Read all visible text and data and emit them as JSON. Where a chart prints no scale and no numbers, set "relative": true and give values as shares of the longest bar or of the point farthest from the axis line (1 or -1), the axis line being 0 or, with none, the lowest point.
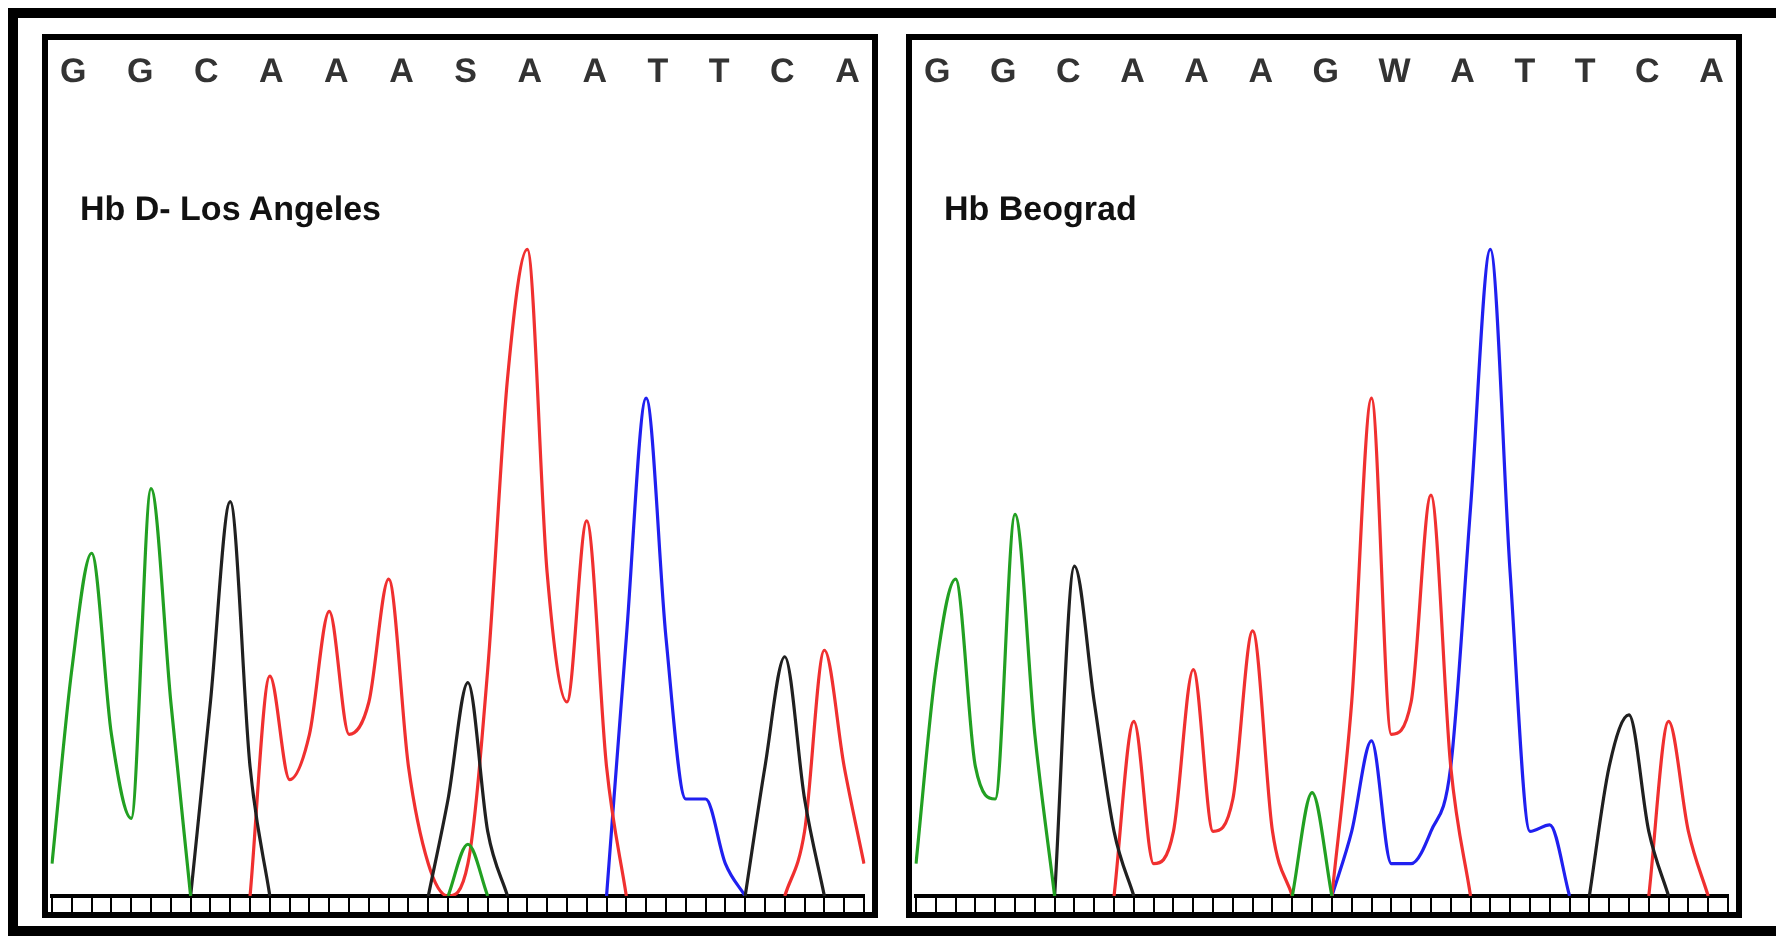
{
  "chart_data": [
    {
      "type": "line",
      "title": "Hb D- Los Angeles",
      "relative": true,
      "legend": false,
      "grid": false,
      "marker": "none",
      "tick_labels": false,
      "annotations": [
        "G",
        "G",
        "C",
        "A",
        "A",
        "A",
        "S",
        "A",
        "A",
        "T",
        "T",
        "C",
        "A"
      ],
      "categories": [
        null,
        null,
        null,
        null,
        null,
        null,
        null,
        null,
        null,
        null,
        null,
        null,
        null,
        null,
        null,
        null,
        null,
        null,
        null,
        null,
        null,
        null,
        null,
        null,
        null,
        null,
        null,
        null,
        null,
        null,
        null,
        null,
        null,
        null,
        null,
        null,
        null,
        null,
        null,
        null,
        null,
        null
      ],
      "series": [
        {
          "color": "#22a022",
          "values": [
            0.05,
            0.35,
            0.53,
            0.25,
            0.12,
            0.63,
            0.3,
            0,
            null,
            null,
            null,
            null,
            null,
            null,
            null,
            null,
            null,
            null,
            null,
            null,
            0,
            0.08,
            0,
            null,
            null,
            null,
            null,
            null,
            null,
            null,
            null,
            null,
            null,
            null,
            null,
            null,
            null,
            null,
            null,
            null,
            null,
            null
          ]
        },
        {
          "color": "#202020",
          "values": [
            null,
            null,
            null,
            null,
            null,
            null,
            null,
            0,
            0.3,
            0.61,
            0.2,
            0,
            null,
            null,
            null,
            null,
            null,
            null,
            null,
            0,
            0.15,
            0.33,
            0.1,
            0,
            null,
            null,
            null,
            null,
            null,
            null,
            null,
            null,
            null,
            null,
            null,
            0,
            0.2,
            0.37,
            0.15,
            0,
            null,
            null
          ]
        },
        {
          "color": "#f03030",
          "values": [
            null,
            null,
            null,
            null,
            null,
            null,
            null,
            null,
            null,
            null,
            0,
            0.34,
            0.18,
            0.25,
            0.44,
            0.25,
            0.3,
            0.49,
            0.2,
            0.05,
            0,
            0.05,
            0.35,
            0.8,
            1,
            0.5,
            0.3,
            0.58,
            0.2,
            0,
            null,
            null,
            null,
            null,
            null,
            null,
            null,
            0,
            0.1,
            0.38,
            0.2,
            0.05
          ]
        },
        {
          "color": "#2020f0",
          "values": [
            null,
            null,
            null,
            null,
            null,
            null,
            null,
            null,
            null,
            null,
            null,
            null,
            null,
            null,
            null,
            null,
            null,
            null,
            null,
            null,
            null,
            null,
            null,
            null,
            null,
            null,
            null,
            null,
            0,
            0.4,
            0.77,
            0.4,
            0.15,
            0.15,
            0.05,
            0,
            null,
            null,
            null,
            null,
            null,
            null
          ]
        }
      ]
    },
    {
      "type": "line",
      "title": "Hb Beograd",
      "relative": true,
      "legend": false,
      "grid": false,
      "marker": "none",
      "tick_labels": false,
      "annotations": [
        "G",
        "G",
        "C",
        "A",
        "A",
        "A",
        "G",
        "W",
        "A",
        "T",
        "T",
        "C",
        "A"
      ],
      "categories": [
        null,
        null,
        null,
        null,
        null,
        null,
        null,
        null,
        null,
        null,
        null,
        null,
        null,
        null,
        null,
        null,
        null,
        null,
        null,
        null,
        null,
        null,
        null,
        null,
        null,
        null,
        null,
        null,
        null,
        null,
        null,
        null,
        null,
        null,
        null,
        null,
        null,
        null,
        null,
        null,
        null,
        null
      ],
      "series": [
        {
          "color": "#22a022",
          "values": [
            0.05,
            0.35,
            0.49,
            0.2,
            0.15,
            0.59,
            0.25,
            0,
            null,
            null,
            null,
            null,
            null,
            null,
            null,
            null,
            null,
            null,
            null,
            0,
            0.16,
            0,
            null,
            null,
            null,
            null,
            null,
            null,
            null,
            null,
            null,
            null,
            null,
            null,
            null,
            null,
            null,
            null,
            null,
            null,
            null,
            null
          ]
        },
        {
          "color": "#202020",
          "values": [
            null,
            null,
            null,
            null,
            null,
            null,
            null,
            0,
            0.51,
            0.3,
            0.1,
            0,
            null,
            null,
            null,
            null,
            null,
            null,
            null,
            null,
            null,
            null,
            null,
            null,
            null,
            null,
            null,
            null,
            null,
            null,
            null,
            null,
            null,
            null,
            0,
            0.2,
            0.28,
            0.1,
            0,
            null,
            null,
            null
          ]
        },
        {
          "color": "#f03030",
          "values": [
            null,
            null,
            null,
            null,
            null,
            null,
            null,
            null,
            null,
            null,
            0,
            0.27,
            0.05,
            0.1,
            0.35,
            0.1,
            0.15,
            0.41,
            0.1,
            0,
            null,
            0,
            0.3,
            0.77,
            0.25,
            0.3,
            0.62,
            0.2,
            0,
            null,
            null,
            null,
            null,
            null,
            null,
            null,
            null,
            0,
            0.27,
            0.1,
            0,
            null
          ]
        },
        {
          "color": "#2020f0",
          "values": [
            null,
            null,
            null,
            null,
            null,
            null,
            null,
            null,
            null,
            null,
            null,
            null,
            null,
            null,
            null,
            null,
            null,
            null,
            null,
            null,
            null,
            0,
            0.1,
            0.24,
            0.05,
            0.05,
            0.1,
            0.2,
            0.6,
            1,
            0.5,
            0.1,
            0.11,
            0,
            null,
            null,
            null,
            null,
            null,
            null,
            null,
            null
          ]
        }
      ]
    }
  ]
}
